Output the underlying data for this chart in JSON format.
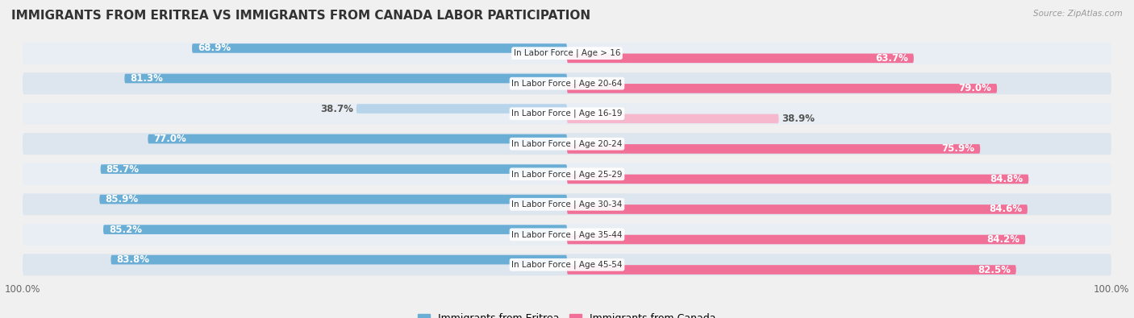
{
  "title": "IMMIGRANTS FROM ERITREA VS IMMIGRANTS FROM CANADA LABOR PARTICIPATION",
  "source": "Source: ZipAtlas.com",
  "categories": [
    "In Labor Force | Age > 16",
    "In Labor Force | Age 20-64",
    "In Labor Force | Age 16-19",
    "In Labor Force | Age 20-24",
    "In Labor Force | Age 25-29",
    "In Labor Force | Age 30-34",
    "In Labor Force | Age 35-44",
    "In Labor Force | Age 45-54"
  ],
  "eritrea_values": [
    68.9,
    81.3,
    38.7,
    77.0,
    85.7,
    85.9,
    85.2,
    83.8
  ],
  "canada_values": [
    63.7,
    79.0,
    38.9,
    75.9,
    84.8,
    84.6,
    84.2,
    82.5
  ],
  "eritrea_color": "#6aaed6",
  "eritrea_light_color": "#b8d4ea",
  "canada_color": "#f07098",
  "canada_light_color": "#f5b8cc",
  "background_color": "#f0f0f0",
  "row_bg_colors": [
    "#e8eef4",
    "#dde5ee"
  ],
  "title_fontsize": 11,
  "label_fontsize": 8.5,
  "tick_fontsize": 8.5,
  "legend_fontsize": 9
}
